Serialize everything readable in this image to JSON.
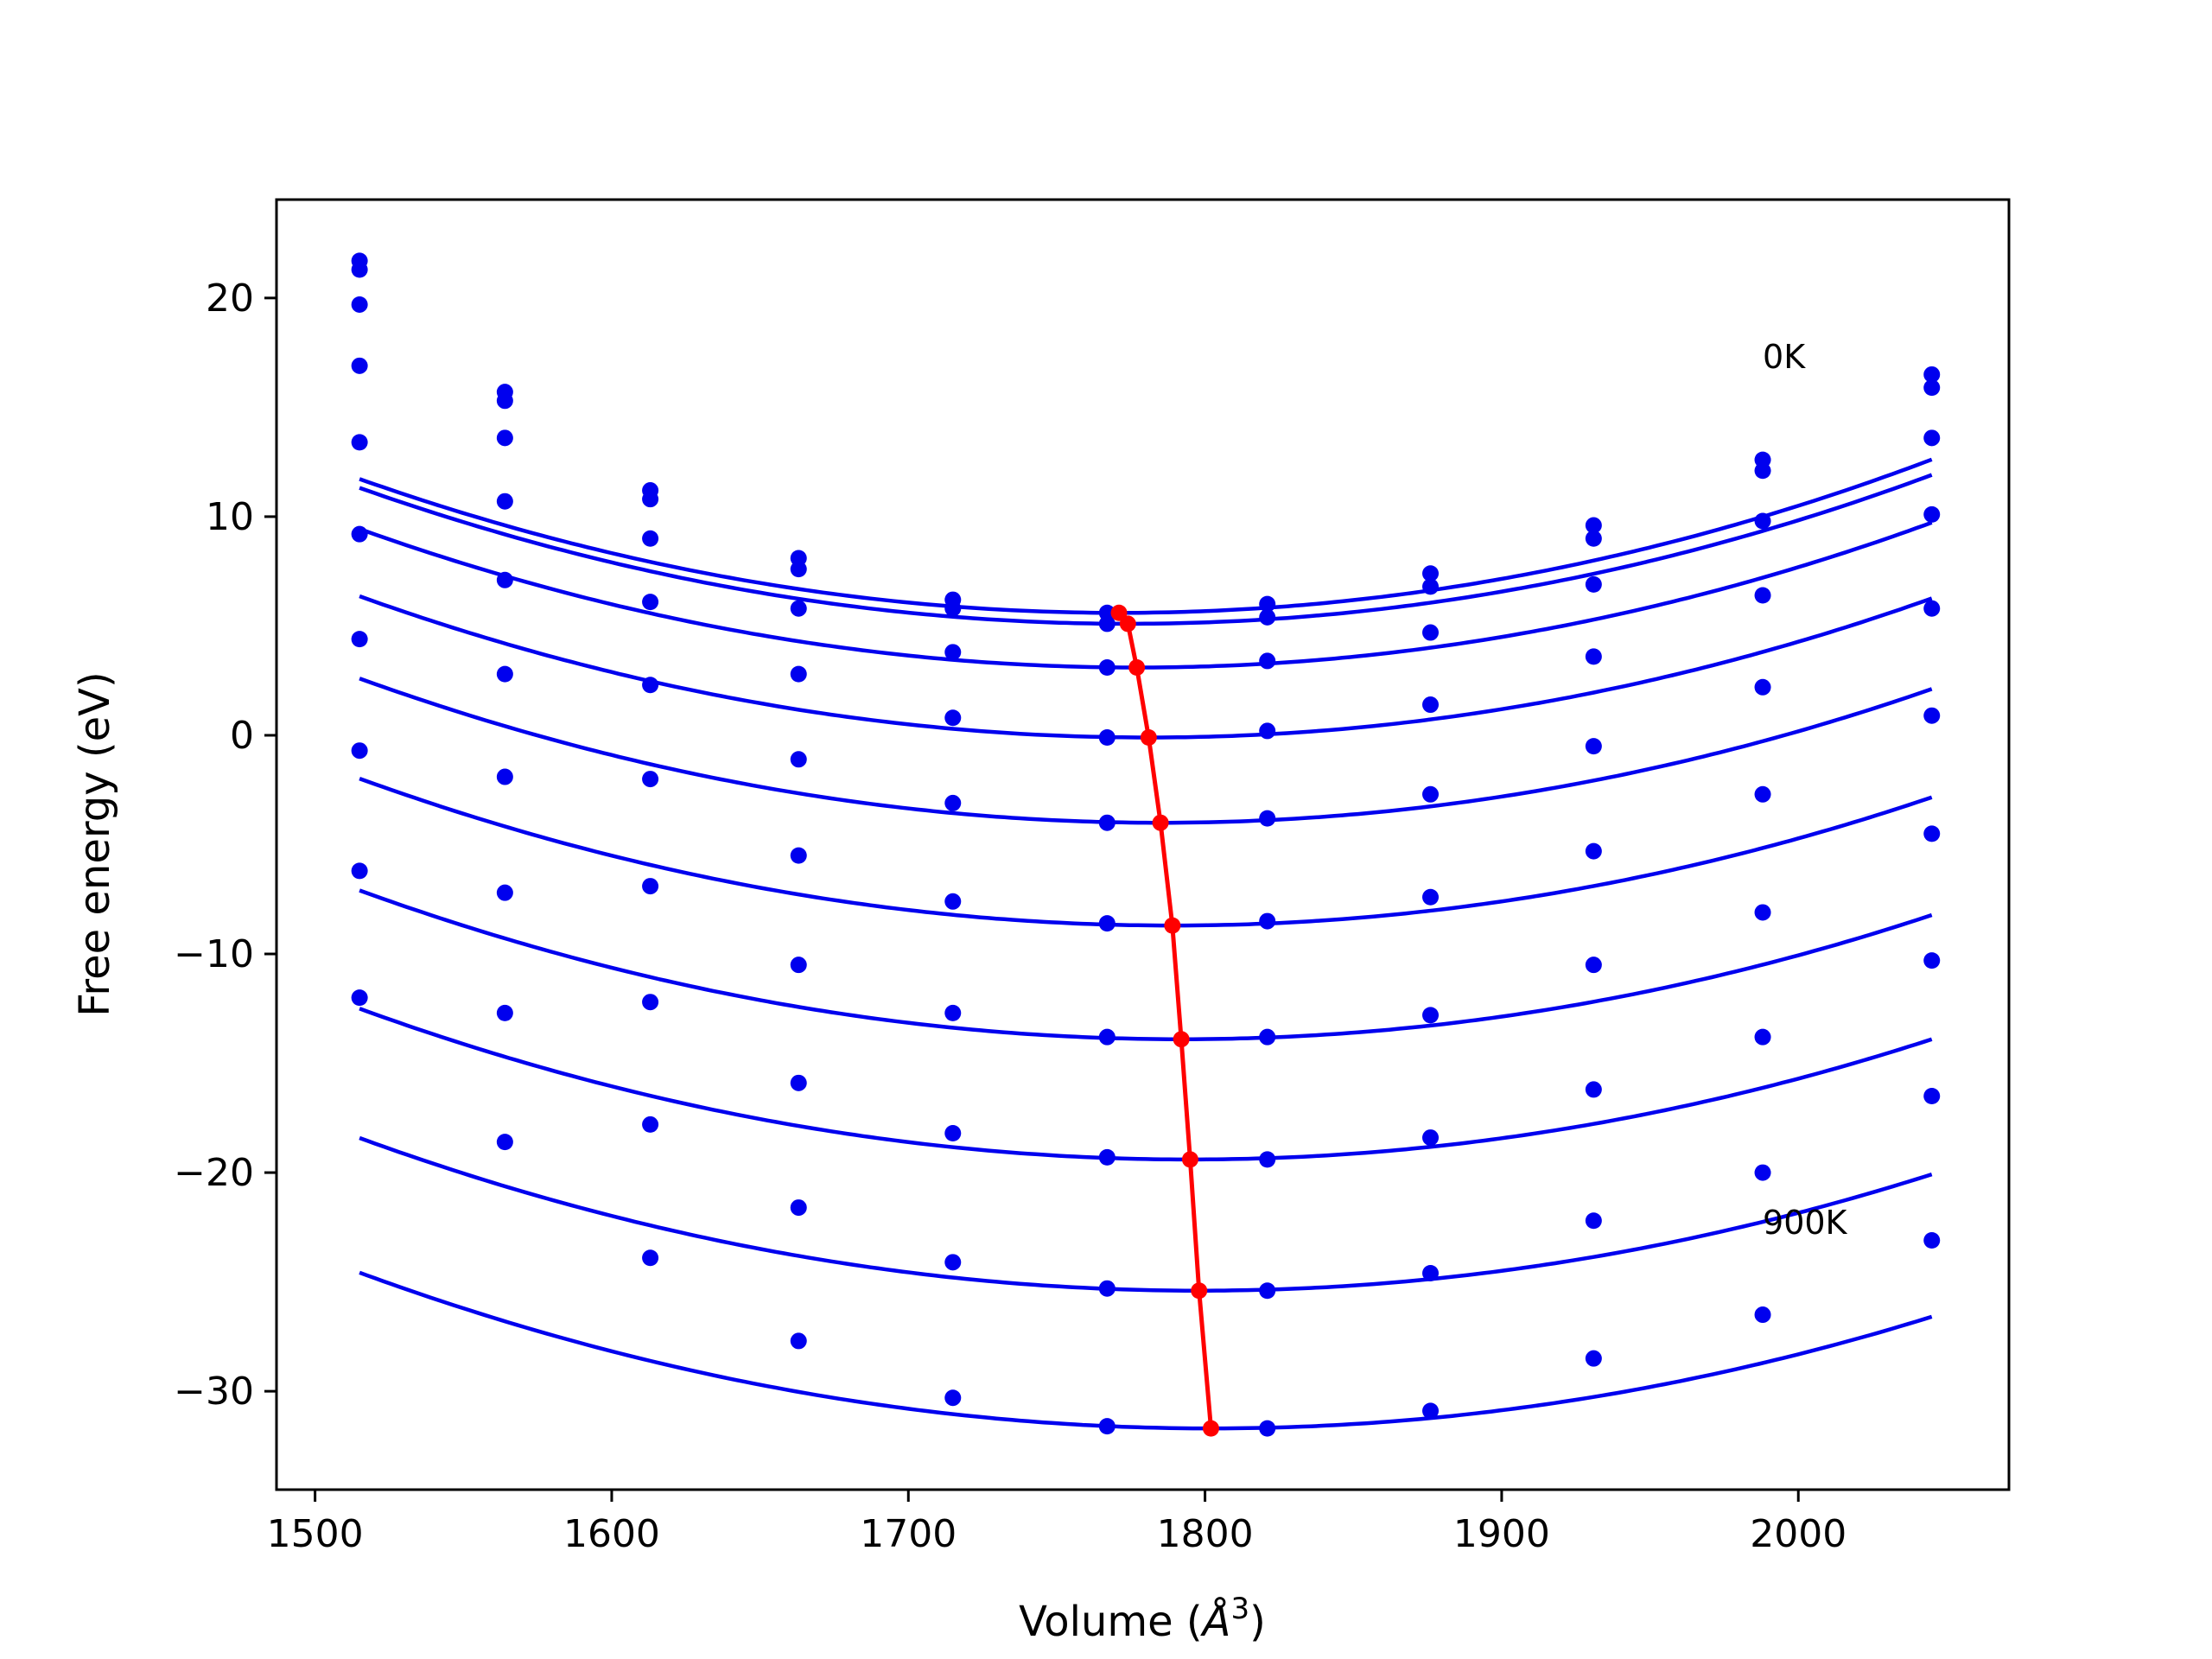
{
  "chart_data": {
    "type": "line",
    "xlabel": "Volume (",
    "xlabel_symbol": "Å",
    "xlabel_exp": "3",
    "xlabel_close": ")",
    "ylabel": "Free energy (eV)",
    "xlim": [
      1487,
      2071
    ],
    "ylim": [
      -34.5,
      24.5
    ],
    "xticks": [
      1500,
      1600,
      1700,
      1800,
      1900,
      2000
    ],
    "yticks": [
      -30,
      -20,
      -10,
      0,
      10,
      20
    ],
    "grid": false,
    "colors": {
      "curves": "#0000ee",
      "minimum_path": "#ff0000",
      "axes": "#000000"
    },
    "annotations": [
      {
        "text": "0K",
        "x": 1988,
        "y": 16.8
      },
      {
        "text": "900K",
        "x": 1988,
        "y": -22.8
      }
    ],
    "volumes": [
      1515,
      1564,
      1613,
      1663,
      1715,
      1767,
      1821,
      1876,
      1931,
      1988,
      2045
    ],
    "series": [
      {
        "points": [
          21.7,
          15.7,
          11.2,
          8.1,
          6.2,
          5.6,
          6.0,
          7.4,
          9.6,
          12.6,
          16.5
        ],
        "curve": [
          9.34e-05,
          1771,
          5.6
        ]
      },
      {
        "points": [
          21.3,
          15.3,
          10.8,
          7.6,
          5.8,
          5.1,
          5.4,
          6.8,
          9.0,
          12.1,
          15.9
        ],
        "curve": [
          9.27e-05,
          1774,
          5.1
        ]
      },
      {
        "points": [
          19.7,
          13.6,
          9.0,
          5.8,
          3.8,
          3.1,
          3.4,
          4.7,
          6.9,
          9.8,
          13.6
        ],
        "curve": [
          9.23e-05,
          1777,
          3.1
        ]
      },
      {
        "points": [
          16.9,
          10.7,
          6.1,
          2.8,
          0.8,
          -0.1,
          0.2,
          1.4,
          3.6,
          6.4,
          10.1
        ],
        "curve": [
          9.13e-05,
          1781,
          -0.1
        ]
      },
      {
        "points": [
          13.4,
          7.1,
          2.3,
          -1.1,
          -3.1,
          -4.0,
          -3.8,
          -2.7,
          -0.5,
          2.2,
          5.8
        ],
        "curve": [
          9.05e-05,
          1785,
          -4.0
        ]
      },
      {
        "points": [
          9.2,
          2.8,
          -2.0,
          -5.5,
          -7.6,
          -8.6,
          -8.5,
          -7.4,
          -5.3,
          -2.7,
          0.9
        ],
        "curve": [
          8.95e-05,
          1789,
          -8.7
        ]
      },
      {
        "points": [
          4.4,
          -1.9,
          -6.9,
          -10.5,
          -12.7,
          -13.8,
          -13.8,
          -12.8,
          -10.5,
          -8.1,
          -4.5
        ],
        "curve": [
          8.87e-05,
          1792,
          -13.9
        ]
      },
      {
        "points": [
          -0.7,
          -7.2,
          -12.2,
          -15.9,
          -18.2,
          -19.3,
          -19.4,
          -18.4,
          -16.2,
          -13.8,
          -10.3
        ],
        "curve": [
          8.8e-05,
          1795,
          -19.4
        ]
      },
      {
        "points": [
          -6.2,
          -12.7,
          -17.8,
          -21.6,
          -24.1,
          -25.3,
          -25.4,
          -24.6,
          -22.2,
          -20.0,
          -16.5
        ],
        "curve": [
          8.72e-05,
          1798,
          -25.4
        ]
      },
      {
        "points": [
          -12.0,
          -18.6,
          -23.9,
          -27.7,
          -30.3,
          -31.6,
          -31.7,
          -30.9,
          -28.5,
          -26.5,
          -23.1
        ],
        "curve": [
          8.65e-05,
          1802,
          -31.7
        ]
      }
    ],
    "minimum_path": {
      "x": [
        1771,
        1774,
        1777,
        1781,
        1785,
        1789,
        1792,
        1795,
        1798,
        1802
      ],
      "y": [
        5.6,
        5.1,
        3.1,
        -0.1,
        -4.0,
        -8.7,
        -13.9,
        -19.4,
        -25.4,
        -31.7
      ]
    }
  }
}
